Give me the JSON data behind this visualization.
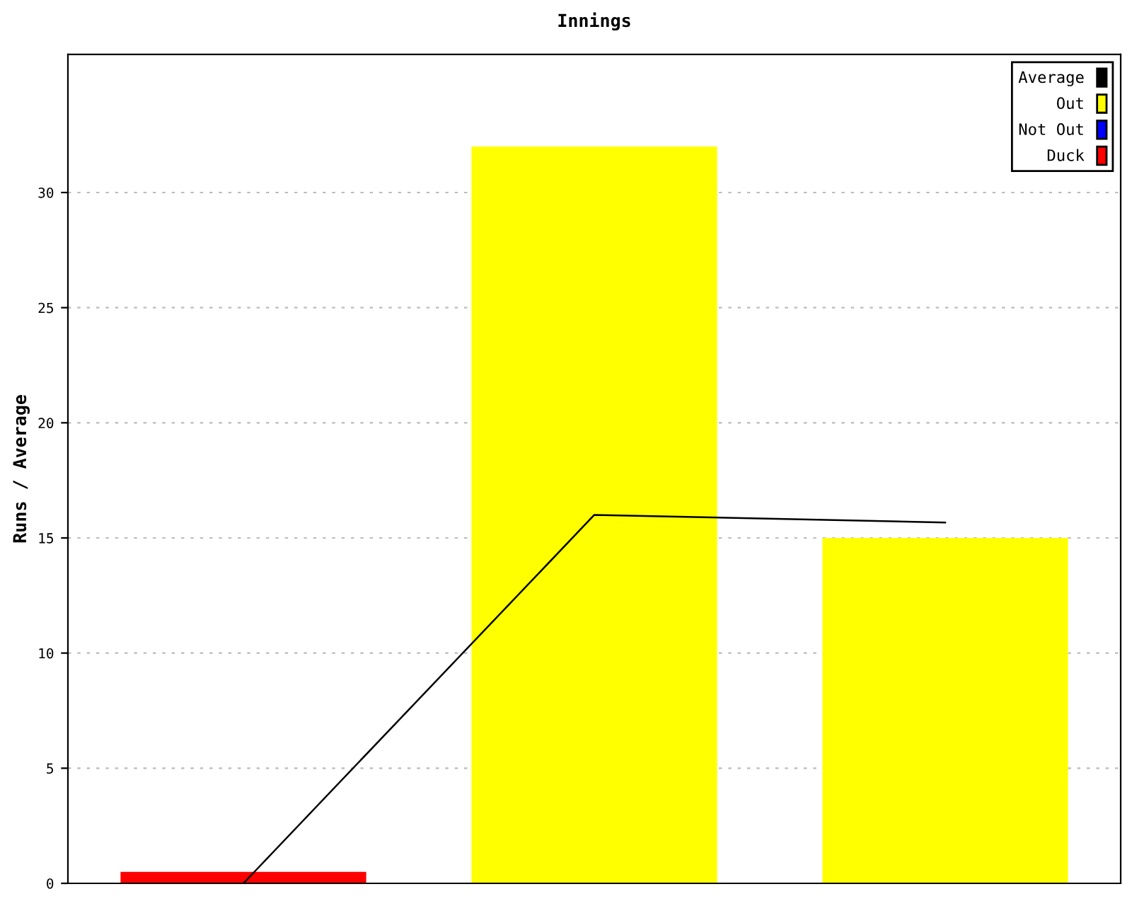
{
  "chart_data": {
    "type": "bar",
    "title": "Innings",
    "ylabel": "Runs / Average",
    "categories": [
      null,
      null,
      null
    ],
    "series": [
      {
        "name": "Average",
        "type": "line",
        "color": "#000000",
        "values": [
          0,
          16,
          15.67
        ]
      },
      {
        "name": "Out",
        "color": "#ffff00",
        "values": [
          null,
          32,
          15
        ]
      },
      {
        "name": "Not Out",
        "color": "#0000ff",
        "values": [
          null,
          null,
          null
        ]
      },
      {
        "name": "Duck",
        "color": "#ff0000",
        "values": [
          0.5,
          null,
          null
        ]
      }
    ],
    "ylim": [
      0,
      36
    ],
    "yticks": [
      0,
      5,
      10,
      15,
      20,
      25,
      30
    ],
    "grid": "y",
    "legend": "top right",
    "marker": "none",
    "line_style": "solid"
  }
}
